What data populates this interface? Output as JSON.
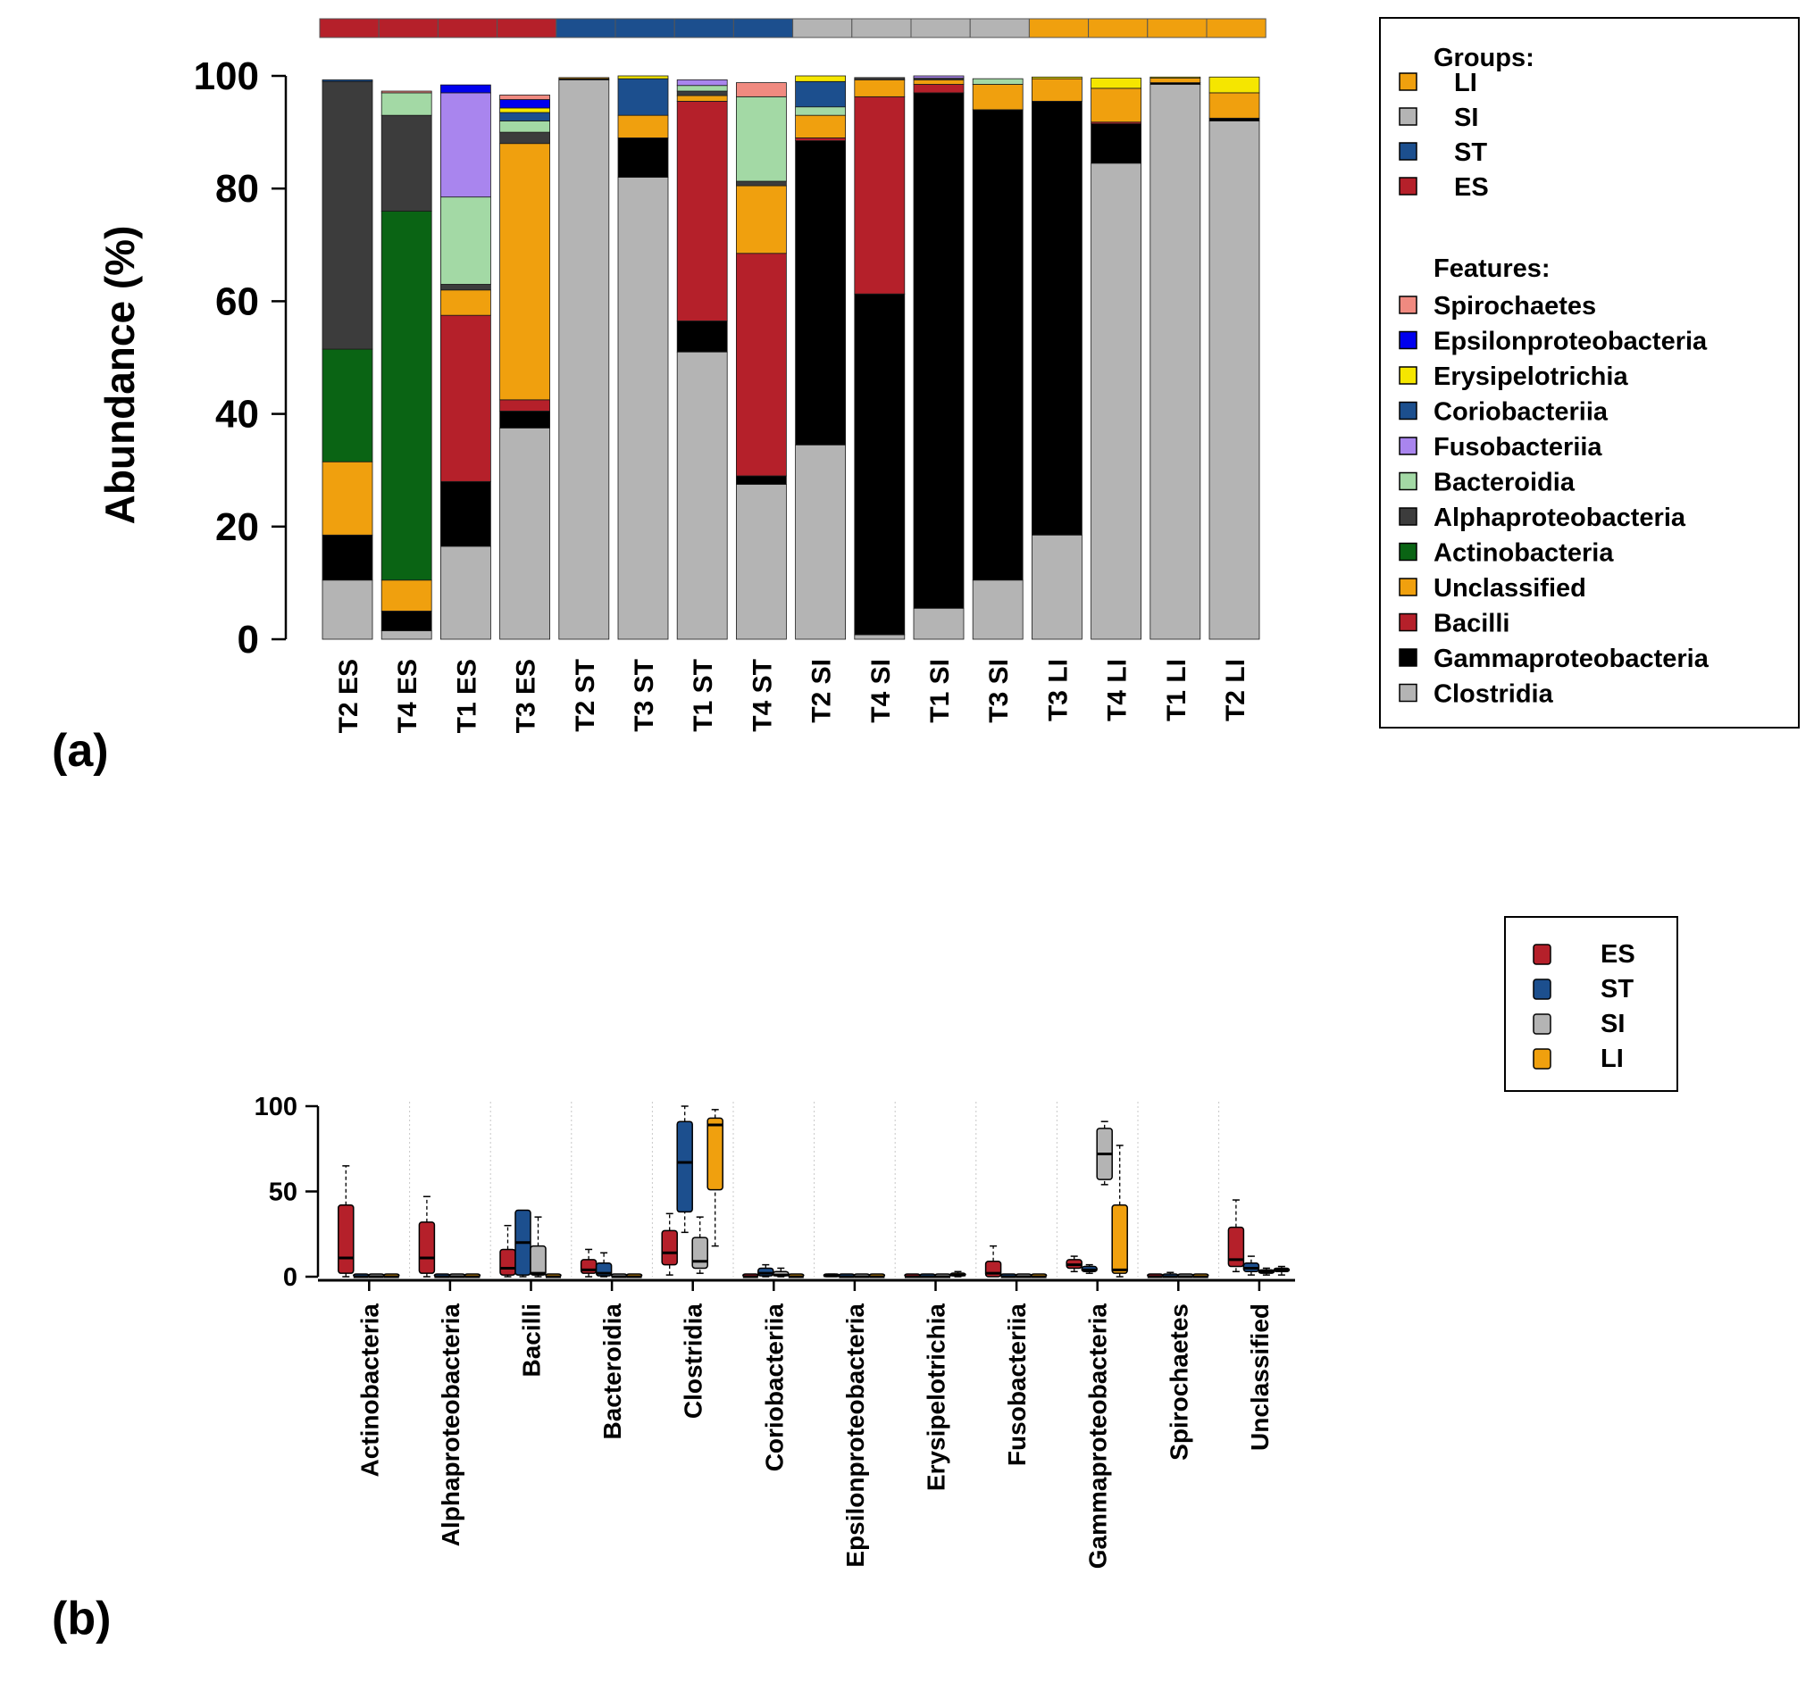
{
  "panel_labels": {
    "a": "(a)",
    "b": "(b)"
  },
  "colors": {
    "groups": {
      "ES": "#b5202a",
      "ST": "#1c4f8e",
      "SI": "#b4b4b4",
      "LI": "#f0a00e"
    },
    "features": {
      "Spirochaetes": "#f08a80",
      "Epsilonproteobacteria": "#0000ee",
      "Erysipelotrichia": "#f5e600",
      "Coriobacteriia": "#1c4f8e",
      "Fusobacteriia": "#a985ee",
      "Bacteroidia": "#a3d9a5",
      "Alphaproteobacteria": "#3c3c3c",
      "Actinobacteria": "#0a6414",
      "Unclassified": "#f0a00e",
      "Bacilli": "#b5202a",
      "Gammaproteobacteria": "#000000",
      "Clostridia": "#b4b4b4"
    }
  },
  "legend_a": {
    "groups_title": "Groups:",
    "groups": [
      "LI",
      "SI",
      "ST",
      "ES"
    ],
    "features_title": "Features:",
    "features": [
      "Spirochaetes",
      "Epsilonproteobacteria",
      "Erysipelotrichia",
      "Coriobacteriia",
      "Fusobacteriia",
      "Bacteroidia",
      "Alphaproteobacteria",
      "Actinobacteria",
      "Unclassified",
      "Bacilli",
      "Gammaproteobacteria",
      "Clostridia"
    ]
  },
  "legend_b": {
    "groups": [
      "ES",
      "ST",
      "SI",
      "LI"
    ]
  },
  "chart_data": [
    {
      "type": "bar",
      "stacked": true,
      "title": "",
      "ylabel": "Abundance (%)",
      "xlabel": "",
      "ylim": [
        0,
        100
      ],
      "yticks": [
        0,
        20,
        40,
        60,
        80,
        100
      ],
      "stack_order": [
        "Clostridia",
        "Gammaproteobacteria",
        "Bacilli",
        "Unclassified",
        "Actinobacteria",
        "Alphaproteobacteria",
        "Bacteroidia",
        "Fusobacteriia",
        "Coriobacteriia",
        "Erysipelotrichia",
        "Epsilonproteobacteria",
        "Spirochaetes"
      ],
      "samples": [
        {
          "label": "T2 ES",
          "group": "ES",
          "Clostridia": 10.5,
          "Gammaproteobacteria": 8,
          "Unclassified": 13,
          "Actinobacteria": 20,
          "Alphaproteobacteria": 47.5,
          "Coriobacteriia": 0.3
        },
        {
          "label": "T4 ES",
          "group": "ES",
          "Clostridia": 1.5,
          "Gammaproteobacteria": 3.5,
          "Unclassified": 5.5,
          "Actinobacteria": 65.5,
          "Alphaproteobacteria": 17,
          "Bacteroidia": 4,
          "Spirochaetes": 0.3
        },
        {
          "label": "T1 ES",
          "group": "ES",
          "Clostridia": 16.5,
          "Gammaproteobacteria": 11.5,
          "Bacilli": 29.5,
          "Unclassified": 4.5,
          "Alphaproteobacteria": 1,
          "Bacteroidia": 15.5,
          "Fusobacteriia": 18.5,
          "Epsilonproteobacteria": 1.4
        },
        {
          "label": "T3 ES",
          "group": "ES",
          "Clostridia": 37.5,
          "Gammaproteobacteria": 3,
          "Bacilli": 2,
          "Unclassified": 45.5,
          "Alphaproteobacteria": 2,
          "Bacteroidia": 2,
          "Coriobacteriia": 1.5,
          "Erysipelotrichia": 0.8,
          "Epsilonproteobacteria": 1.5,
          "Spirochaetes": 0.8
        },
        {
          "label": "T2 ST",
          "group": "ST",
          "Clostridia": 99.3,
          "Gammaproteobacteria": 0.2,
          "Unclassified": 0.2
        },
        {
          "label": "T3 ST",
          "group": "ST",
          "Clostridia": 82,
          "Gammaproteobacteria": 7,
          "Unclassified": 4,
          "Coriobacteriia": 6.5,
          "Erysipelotrichia": 0.5
        },
        {
          "label": "T1 ST",
          "group": "ST",
          "Clostridia": 51,
          "Gammaproteobacteria": 5.5,
          "Bacilli": 39,
          "Unclassified": 1,
          "Alphaproteobacteria": 0.8,
          "Bacteroidia": 1,
          "Fusobacteriia": 1
        },
        {
          "label": "T4 ST",
          "group": "ST",
          "Clostridia": 27.5,
          "Gammaproteobacteria": 1.5,
          "Bacilli": 39.5,
          "Unclassified": 12,
          "Alphaproteobacteria": 0.8,
          "Bacteroidia": 15,
          "Spirochaetes": 2.5
        },
        {
          "label": "T2 SI",
          "group": "SI",
          "Clostridia": 34.5,
          "Gammaproteobacteria": 54,
          "Bacilli": 0.5,
          "Unclassified": 4,
          "Bacteroidia": 1.5,
          "Coriobacteriia": 4.5,
          "Erysipelotrichia": 1
        },
        {
          "label": "T4 SI",
          "group": "SI",
          "Clostridia": 0.8,
          "Gammaproteobacteria": 60.5,
          "Bacilli": 35,
          "Unclassified": 3,
          "Alphaproteobacteria": 0.4
        },
        {
          "label": "T1 SI",
          "group": "SI",
          "Clostridia": 5.5,
          "Gammaproteobacteria": 91.5,
          "Bacilli": 1.5,
          "Unclassified": 0.8,
          "Alphaproteobacteria": 0.3,
          "Fusobacteriia": 0.4
        },
        {
          "label": "T3 SI",
          "group": "SI",
          "Clostridia": 10.5,
          "Gammaproteobacteria": 83.5,
          "Unclassified": 4.5,
          "Bacteroidia": 1
        },
        {
          "label": "T3 LI",
          "group": "LI",
          "Clostridia": 18.5,
          "Gammaproteobacteria": 77,
          "Unclassified": 4,
          "Erysipelotrichia": 0.3
        },
        {
          "label": "T4 LI",
          "group": "LI",
          "Clostridia": 84.5,
          "Gammaproteobacteria": 7,
          "Bacilli": 0.3,
          "Unclassified": 6,
          "Erysipelotrichia": 1.8
        },
        {
          "label": "T1 LI",
          "group": "LI",
          "Clostridia": 98.5,
          "Gammaproteobacteria": 0.3,
          "Unclassified": 0.8,
          "Erysipelotrichia": 0.2
        },
        {
          "label": "T2 LI",
          "group": "LI",
          "Clostridia": 92,
          "Gammaproteobacteria": 0.5,
          "Unclassified": 4.5,
          "Erysipelotrichia": 2.8
        }
      ]
    },
    {
      "type": "box",
      "title": "",
      "xlabel": "",
      "ylabel": "",
      "ylim": [
        0,
        100
      ],
      "yticks": [
        0,
        50,
        100
      ],
      "groups": [
        "ES",
        "ST",
        "SI",
        "LI"
      ],
      "categories": [
        "Actinobacteria",
        "Alphaproteobacteria",
        "Bacilli",
        "Bacteroidia",
        "Clostridia",
        "Coriobacteriia",
        "Epsilonproteobacteria",
        "Erysipelotrichia",
        "Fusobacteriia",
        "Gammaproteobacteria",
        "Spirochaetes",
        "Unclassified"
      ],
      "boxes": [
        [
          [
            0,
            2,
            11,
            42,
            65
          ],
          [
            0,
            0,
            0,
            0,
            0
          ],
          [
            0,
            0,
            0,
            0,
            0
          ],
          [
            0,
            0,
            0,
            0,
            0
          ]
        ],
        [
          [
            0,
            2,
            11,
            32,
            47
          ],
          [
            0,
            0,
            0,
            0,
            0
          ],
          [
            0,
            0,
            0,
            0,
            0
          ],
          [
            0,
            0,
            0,
            0,
            0
          ]
        ],
        [
          [
            0,
            1,
            5,
            16,
            30
          ],
          [
            0,
            1,
            20,
            39,
            39
          ],
          [
            0,
            1,
            2,
            18,
            35
          ],
          [
            0,
            0,
            0,
            0.5,
            1
          ]
        ],
        [
          [
            0,
            2,
            4,
            10,
            16
          ],
          [
            0,
            0.5,
            2,
            8,
            14
          ],
          [
            0,
            0,
            0,
            1,
            1
          ],
          [
            0,
            0,
            0,
            0,
            1
          ]
        ],
        [
          [
            1,
            7,
            14,
            27,
            37
          ],
          [
            26,
            38,
            67,
            91,
            100
          ],
          [
            2,
            5,
            9,
            23,
            35
          ],
          [
            18,
            51,
            89,
            93,
            98
          ]
        ],
        [
          [
            0,
            0,
            0,
            1,
            1
          ],
          [
            0,
            0.5,
            2,
            5,
            7
          ],
          [
            0,
            0.5,
            1,
            3,
            5
          ],
          [
            0,
            0,
            0,
            1,
            1
          ]
        ],
        [
          [
            0,
            0,
            0.5,
            1,
            1.5
          ],
          [
            0,
            0,
            0,
            0.5,
            1
          ],
          [
            0,
            0,
            0,
            0,
            0
          ],
          [
            0,
            0,
            0,
            0,
            0
          ]
        ],
        [
          [
            0,
            0,
            0,
            0,
            0
          ],
          [
            0,
            0,
            0,
            0.5,
            0.5
          ],
          [
            0,
            0,
            0,
            0,
            1
          ],
          [
            0,
            0.5,
            1,
            2,
            3
          ]
        ],
        [
          [
            0,
            0,
            2,
            9,
            18
          ],
          [
            0,
            0,
            0,
            1,
            1
          ],
          [
            0,
            0,
            0,
            0,
            0
          ],
          [
            0,
            0,
            0,
            0,
            0
          ]
        ],
        [
          [
            3,
            5,
            7,
            10,
            12
          ],
          [
            2,
            3,
            4,
            6,
            7
          ],
          [
            54,
            57,
            72,
            87,
            91
          ],
          [
            0,
            2,
            4,
            42,
            77
          ]
        ],
        [
          [
            0,
            0,
            0,
            0.5,
            1
          ],
          [
            0,
            0,
            0,
            1,
            2.5
          ],
          [
            0,
            0,
            0,
            0,
            0.5
          ],
          [
            0,
            0,
            0,
            0,
            0
          ]
        ],
        [
          [
            3,
            6,
            10,
            29,
            45
          ],
          [
            1,
            3,
            5,
            8,
            12
          ],
          [
            1,
            2,
            3,
            4,
            5
          ],
          [
            1,
            3,
            4,
            5,
            6
          ]
        ]
      ]
    }
  ]
}
